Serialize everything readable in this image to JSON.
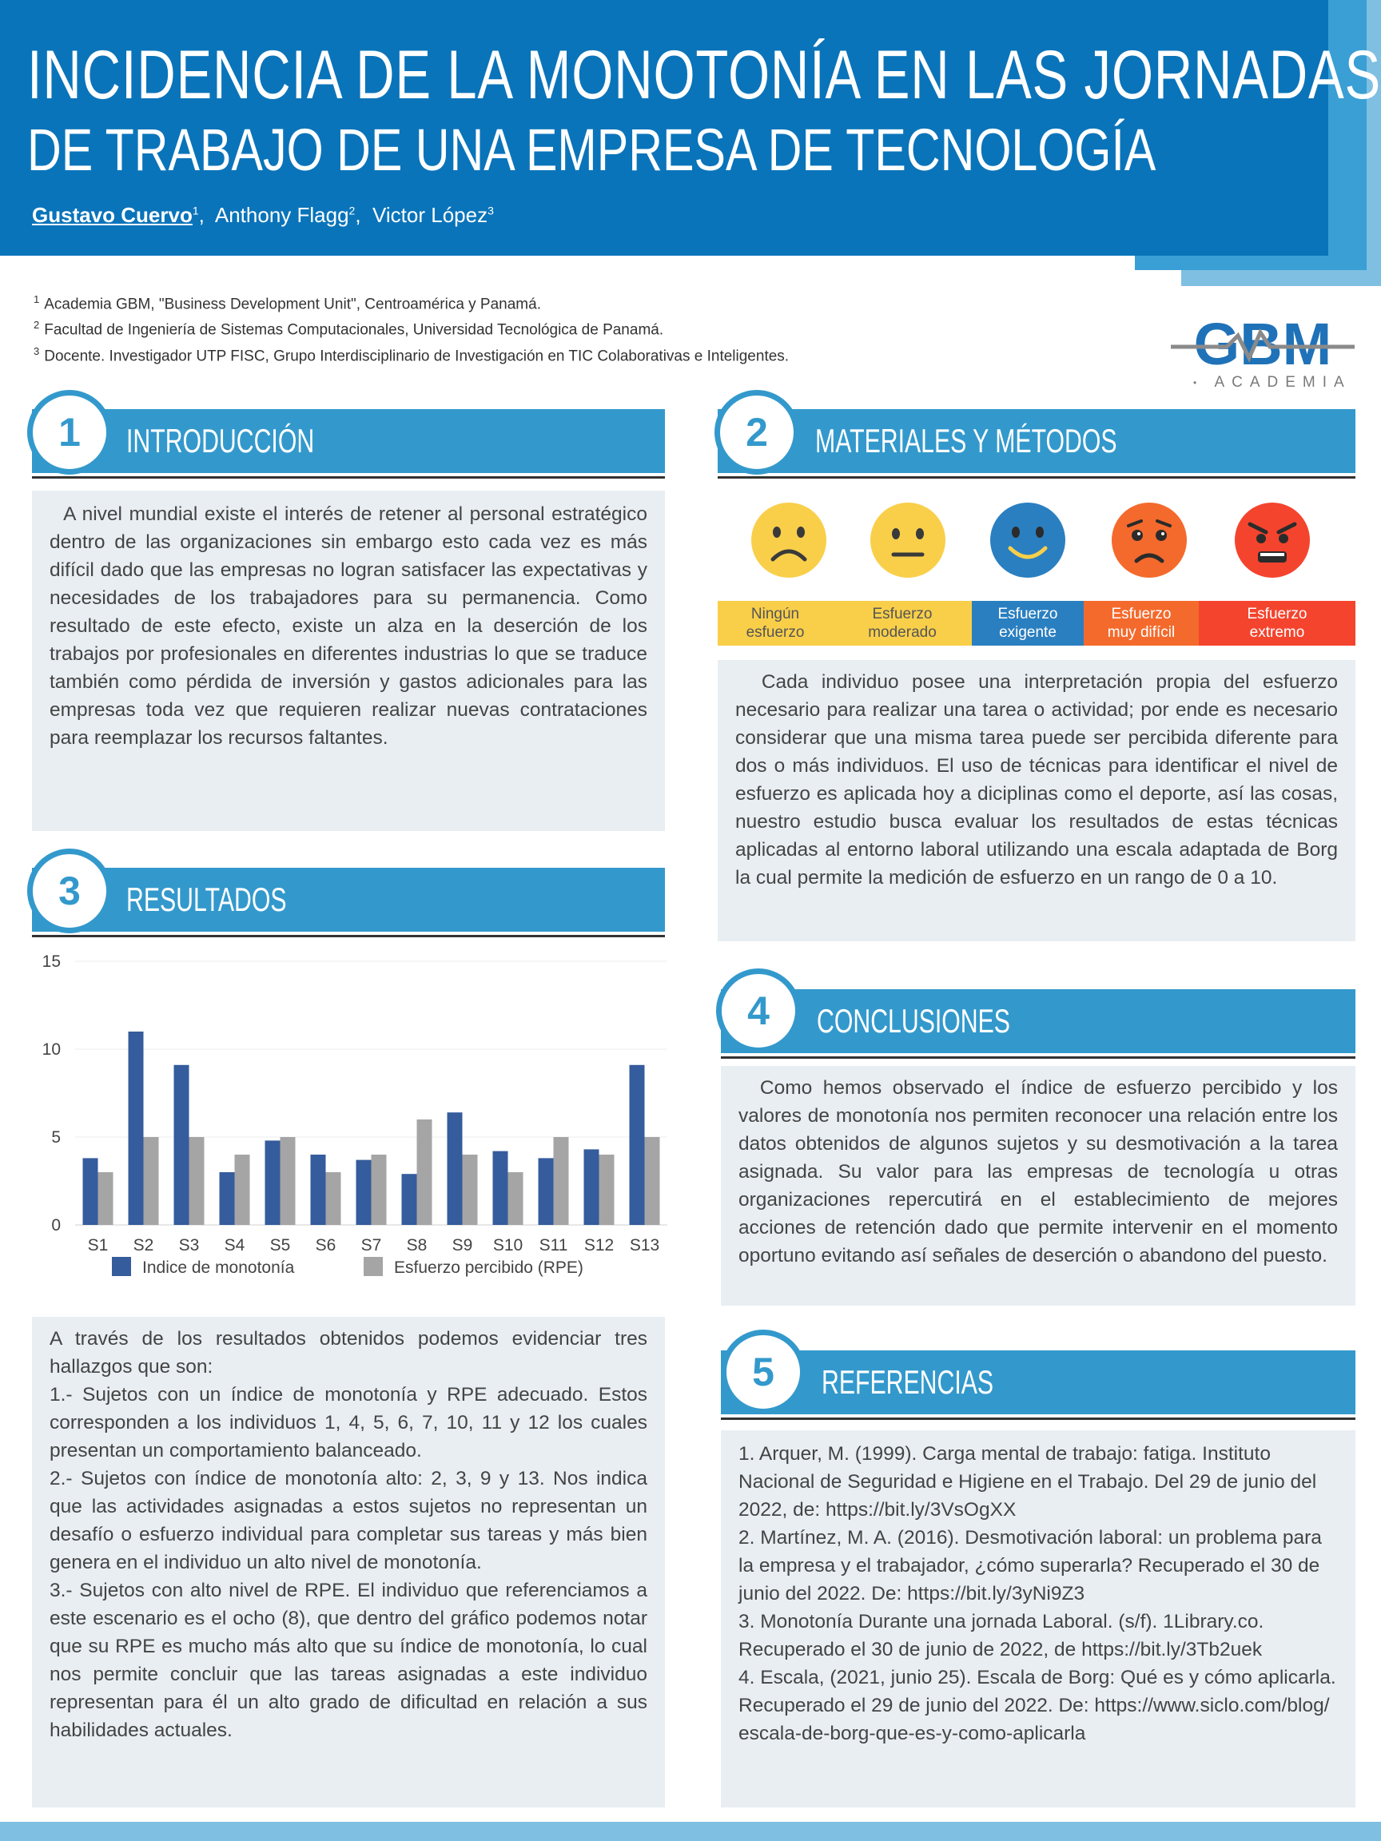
{
  "header": {
    "title_line1": "INCIDENCIA DE LA MONOTONÍA EN LAS JORNADAS",
    "title_line2": "DE TRABAJO DE UNA EMPRESA DE TECNOLOGÍA",
    "authors": [
      {
        "name": "Gustavo Cuervo",
        "sup": "1"
      },
      {
        "name": "Anthony Flagg",
        "sup": "2"
      },
      {
        "name": "Victor López",
        "sup": "3"
      }
    ]
  },
  "affiliations": [
    {
      "sup": "1",
      "text": "Academia GBM, \"Business Development Unit\", Centroamérica y Panamá."
    },
    {
      "sup": "2",
      "text": "Facultad de Ingeniería de Sistemas Computacionales, Universidad Tecnológica de Panamá."
    },
    {
      "sup": "3",
      "text": "Docente. Investigador UTP FISC,  Grupo Interdisciplinario de Investigación en TIC Colaborativas e Inteligentes."
    }
  ],
  "logo": {
    "brand": "GBM",
    "sub": "ACADEMIA"
  },
  "sections": {
    "intro": {
      "number": "1",
      "title": "INTRODUCCIÓN",
      "text": "A nivel mundial existe el interés de retener al personal estratégico dentro de las organizaciones sin embargo esto cada vez es más difícil dado que las empresas no logran satisfacer las expectativas y necesidades de los trabajadores para su permanencia. Como resultado de este efecto, existe un alza en la deserción de los trabajos por profesionales en diferentes industrias lo que se traduce también como pérdida de inversión y gastos adicionales para las empresas toda vez que requieren realizar nuevas contrataciones para reemplazar los recursos faltantes."
    },
    "methods": {
      "number": "2",
      "title": "MATERIALES Y MÉTODOS",
      "scale": [
        {
          "line1": "Ningún",
          "line2": "esfuerzo",
          "color": "#f9cf4a",
          "text_color": "#555555",
          "face": "sad"
        },
        {
          "line1": "Esfuerzo",
          "line2": "moderado",
          "color": "#f9cf4a",
          "text_color": "#555555",
          "face": "neutral"
        },
        {
          "line1": "Esfuerzo",
          "line2": "exigente",
          "color": "#2a7fc0",
          "text_color": "#ffffff",
          "face": "smile"
        },
        {
          "line1": "Esfuerzo",
          "line2": "muy difícil",
          "color": "#f46a2c",
          "text_color": "#ffffff",
          "face": "worried"
        },
        {
          "line1": "Esfuerzo",
          "line2": "extremo",
          "color": "#f4442e",
          "text_color": "#ffffff",
          "face": "angry"
        }
      ],
      "text": "Cada individuo posee una interpretación propia del esfuerzo necesario para realizar una tarea o actividad; por ende es necesario considerar que una misma tarea puede ser percibida diferente para dos o más individuos. El uso de técnicas para identificar el nivel de esfuerzo es aplicada hoy a diciplinas como el deporte, así las cosas, nuestro estudio busca evaluar los resultados de estas técnicas aplicadas al entorno laboral utilizando una escala adaptada de Borg la cual permite la medición de esfuerzo en un rango de 0 a 10."
    },
    "results": {
      "number": "3",
      "title": "RESULTADOS",
      "intro": "A través de los resultados obtenidos podemos evidenciar tres hallazgos que son:",
      "finding1": "1.- Sujetos con un índice de monotonía y RPE adecuado. Estos corresponden a los individuos 1, 4, 5, 6, 7, 10, 11 y 12  los cuales presentan un comportamiento balanceado.",
      "finding2": "2.- Sujetos con índice de monotonía alto: 2, 3, 9 y 13. Nos indica que las actividades asignadas a estos sujetos no representan un desafío o esfuerzo individual para completar sus tareas y más bien genera en el individuo un alto nivel de monotonía.",
      "finding3": "3.- Sujetos con alto nivel de RPE. El individuo que referenciamos a este escenario es el ocho (8), que dentro del gráfico podemos notar que su RPE es mucho más alto que su índice de monotonía, lo cual nos permite concluir que las tareas asignadas a este individuo representan para él un alto grado de dificultad en relación a sus habilidades actuales."
    },
    "conclusions": {
      "number": "4",
      "title": "CONCLUSIONES",
      "text": "Como hemos observado el índice de esfuerzo percibido y los valores de monotonía nos permiten reconocer una relación entre los datos obtenidos de algunos sujetos y su desmotivación a la tarea asignada. Su valor para las empresas de tecnología u otras organizaciones repercutirá en el establecimiento de mejores acciones de retención dado que permite intervenir en el momento oportuno evitando así señales de deserción o abandono del puesto."
    },
    "references": {
      "number": "5",
      "title": "REFERENCIAS",
      "items": [
        "1. Arquer, M. (1999). Carga mental de trabajo: fatiga. Instituto Nacional de Seguridad e Higiene en el Trabajo. Del 29 de junio del 2022, de: https://bit.ly/3VsOgXX",
        "2. Martínez, M. A. (2016). Desmotivación laboral: un problema para la empresa y el trabajador, ¿cómo superarla? Recuperado el 30 de junio del 2022. De: https://bit.ly/3yNi9Z3",
        "3. Monotonía Durante una jornada Laboral. (s/f). 1Library.co. Recuperado el 30 de junio de 2022, de https://bit.ly/3Tb2uek",
        "4. Escala, (2021, junio 25). Escala de Borg: Qué es y cómo aplicarla. Recuperado el 29 de junio del 2022. De: https://www.siclo.com/blog/escala-de-borg-que-es-y-como-aplicarla"
      ]
    }
  },
  "chart_data": {
    "type": "bar",
    "categories": [
      "S1",
      "S2",
      "S3",
      "S4",
      "S5",
      "S6",
      "S7",
      "S8",
      "S9",
      "S10",
      "S11",
      "S12",
      "S13"
    ],
    "series": [
      {
        "name": "Indice de monotonía",
        "color": "#355c9c",
        "values": [
          3.8,
          11.0,
          9.1,
          3.0,
          4.8,
          4.0,
          3.7,
          2.9,
          6.4,
          4.2,
          3.8,
          4.3,
          9.1
        ]
      },
      {
        "name": "Esfuerzo percibido (RPE)",
        "color": "#a5a5a5",
        "values": [
          3,
          5,
          5,
          4,
          5,
          3,
          4,
          6,
          4,
          3,
          5,
          4,
          5
        ]
      }
    ],
    "yticks": [
      0,
      5,
      10,
      15
    ],
    "ylim": [
      0,
      15
    ],
    "grid": true,
    "legend": "bottom"
  }
}
